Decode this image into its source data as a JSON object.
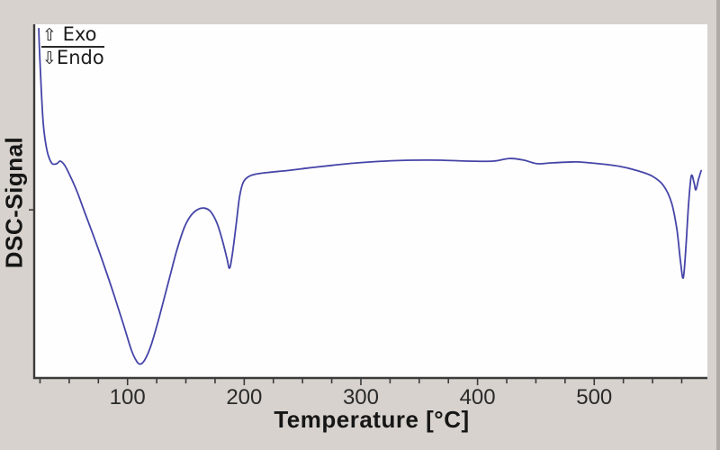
{
  "figure": {
    "y_axis_label": "DSC-Signal",
    "x_axis_label": "Temperature [°C]",
    "exo_arrow": "⇧",
    "exo_text": " Exo",
    "endo_arrow": "⇩",
    "endo_text": "Endo",
    "colors": {
      "background": "#d7d2cd",
      "plot_background": "#fefefe",
      "curve": "#4545a8",
      "axis": "#3b3b3b",
      "tick_label": "#2a2a2a"
    }
  },
  "chart_data": {
    "type": "line",
    "title": "",
    "xlabel": "Temperature [°C]",
    "ylabel": "DSC-Signal",
    "y_unit": "arbitrary units (y axis unlabeled); up = exothermic, down = endothermic",
    "x_range": [
      20,
      597
    ],
    "y_range": [
      -2.5,
      1.56
    ],
    "grid": false,
    "x_ticks_labeled": [
      100,
      200,
      300,
      400,
      500
    ],
    "x_tick_minor_start": 25,
    "x_tick_minor_end": 575,
    "x_tick_minor_step": 25,
    "y_ticks": [
      -0.57
    ],
    "annotations": [
      {
        "text": "⇧ Exo",
        "meaning": "exothermic direction up"
      },
      {
        "text": "⇩Endo",
        "meaning": "endothermic direction down"
      }
    ],
    "notable_features": [
      {
        "type": "endothermic peak",
        "temperature_c": 111
      },
      {
        "type": "endothermic peak",
        "temperature_c": 187
      },
      {
        "type": "sharp endothermic peak",
        "temperature_c": 576
      }
    ],
    "series": [
      {
        "name": "DSC signal",
        "color": "#4545a8",
        "points": [
          [
            23.9,
            1.51
          ],
          [
            24.6,
            1.23
          ],
          [
            26.2,
            0.78
          ],
          [
            27.7,
            0.43
          ],
          [
            30.0,
            0.18
          ],
          [
            32.4,
            0.04
          ],
          [
            35.5,
            -0.04
          ],
          [
            39.3,
            -0.04
          ],
          [
            42.4,
            -0.01
          ],
          [
            46.2,
            -0.06
          ],
          [
            50.8,
            -0.18
          ],
          [
            57.0,
            -0.37
          ],
          [
            63.9,
            -0.62
          ],
          [
            71.7,
            -0.9
          ],
          [
            80.2,
            -1.22
          ],
          [
            88.7,
            -1.56
          ],
          [
            96.4,
            -1.88
          ],
          [
            103.3,
            -2.18
          ],
          [
            107.9,
            -2.31
          ],
          [
            111.0,
            -2.34
          ],
          [
            114.9,
            -2.29
          ],
          [
            120.3,
            -2.12
          ],
          [
            127.2,
            -1.8
          ],
          [
            135.0,
            -1.4
          ],
          [
            141.9,
            -1.05
          ],
          [
            148.1,
            -0.79
          ],
          [
            153.5,
            -0.65
          ],
          [
            159.6,
            -0.57
          ],
          [
            165.8,
            -0.55
          ],
          [
            171.2,
            -0.59
          ],
          [
            176.6,
            -0.72
          ],
          [
            181.3,
            -0.92
          ],
          [
            185.1,
            -1.12
          ],
          [
            187.4,
            -1.24
          ],
          [
            189.7,
            -1.09
          ],
          [
            192.8,
            -0.77
          ],
          [
            195.9,
            -0.43
          ],
          [
            199.0,
            -0.26
          ],
          [
            203.6,
            -0.19
          ],
          [
            209.8,
            -0.16
          ],
          [
            220.6,
            -0.14
          ],
          [
            236.0,
            -0.12
          ],
          [
            254.6,
            -0.09
          ],
          [
            274.6,
            -0.06
          ],
          [
            297.8,
            -0.03
          ],
          [
            320.9,
            -0.01
          ],
          [
            344.1,
            0.0
          ],
          [
            368.8,
            0.0
          ],
          [
            391.9,
            -0.01
          ],
          [
            413.5,
            -0.01
          ],
          [
            427.4,
            0.02
          ],
          [
            439.8,
            0.0
          ],
          [
            451.3,
            -0.04
          ],
          [
            464.4,
            -0.03
          ],
          [
            484.5,
            -0.02
          ],
          [
            503.8,
            -0.04
          ],
          [
            521.5,
            -0.07
          ],
          [
            537.0,
            -0.12
          ],
          [
            549.3,
            -0.18
          ],
          [
            559.3,
            -0.29
          ],
          [
            566.3,
            -0.49
          ],
          [
            570.9,
            -0.8
          ],
          [
            574.0,
            -1.17
          ],
          [
            576.3,
            -1.35
          ],
          [
            578.6,
            -1.0
          ],
          [
            580.9,
            -0.5
          ],
          [
            583.2,
            -0.18
          ],
          [
            585.6,
            -0.26
          ],
          [
            587.1,
            -0.34
          ],
          [
            589.4,
            -0.22
          ],
          [
            591.7,
            -0.12
          ]
        ]
      }
    ]
  }
}
